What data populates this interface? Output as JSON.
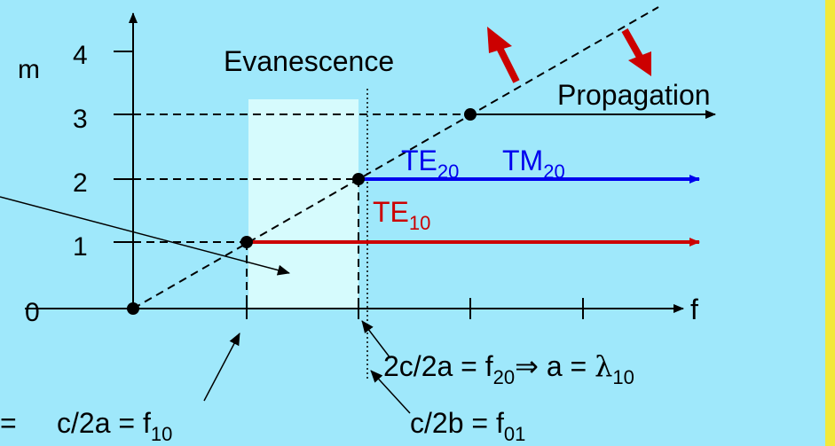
{
  "colors": {
    "background": "#9fe8fb",
    "band": "#d6fbfd",
    "te10": "#cc0000",
    "te20": "#0000ee",
    "ink": "#000000",
    "strip": "#f2e93a"
  },
  "axes": {
    "y_label": "m",
    "x_label": "f",
    "y_ticks": [
      "0",
      "1",
      "2",
      "3",
      "4"
    ]
  },
  "regions": {
    "evanescence": "Evanescence",
    "propagation": "Propagation"
  },
  "modes": {
    "te10": {
      "base": "TE",
      "sub": "10"
    },
    "te20": {
      "base": "TE",
      "sub": "20"
    },
    "tm20": {
      "base": "TM",
      "sub": "20"
    }
  },
  "equations": {
    "f20_pre": "2c/2a = f",
    "f20_sub": "20",
    "f20_implies": "⇒",
    "f20_post": " a = ",
    "lambda": "λ",
    "lambda_sub": "10",
    "f10_prefix": "=",
    "f10_pre": "c/2a = f",
    "f10_sub": "10",
    "f01_pre": "c/2b = f",
    "f01_sub": "01"
  },
  "icons": {
    "arrow_up": "red-arrow-up-left",
    "arrow_down": "red-arrow-down-right"
  }
}
